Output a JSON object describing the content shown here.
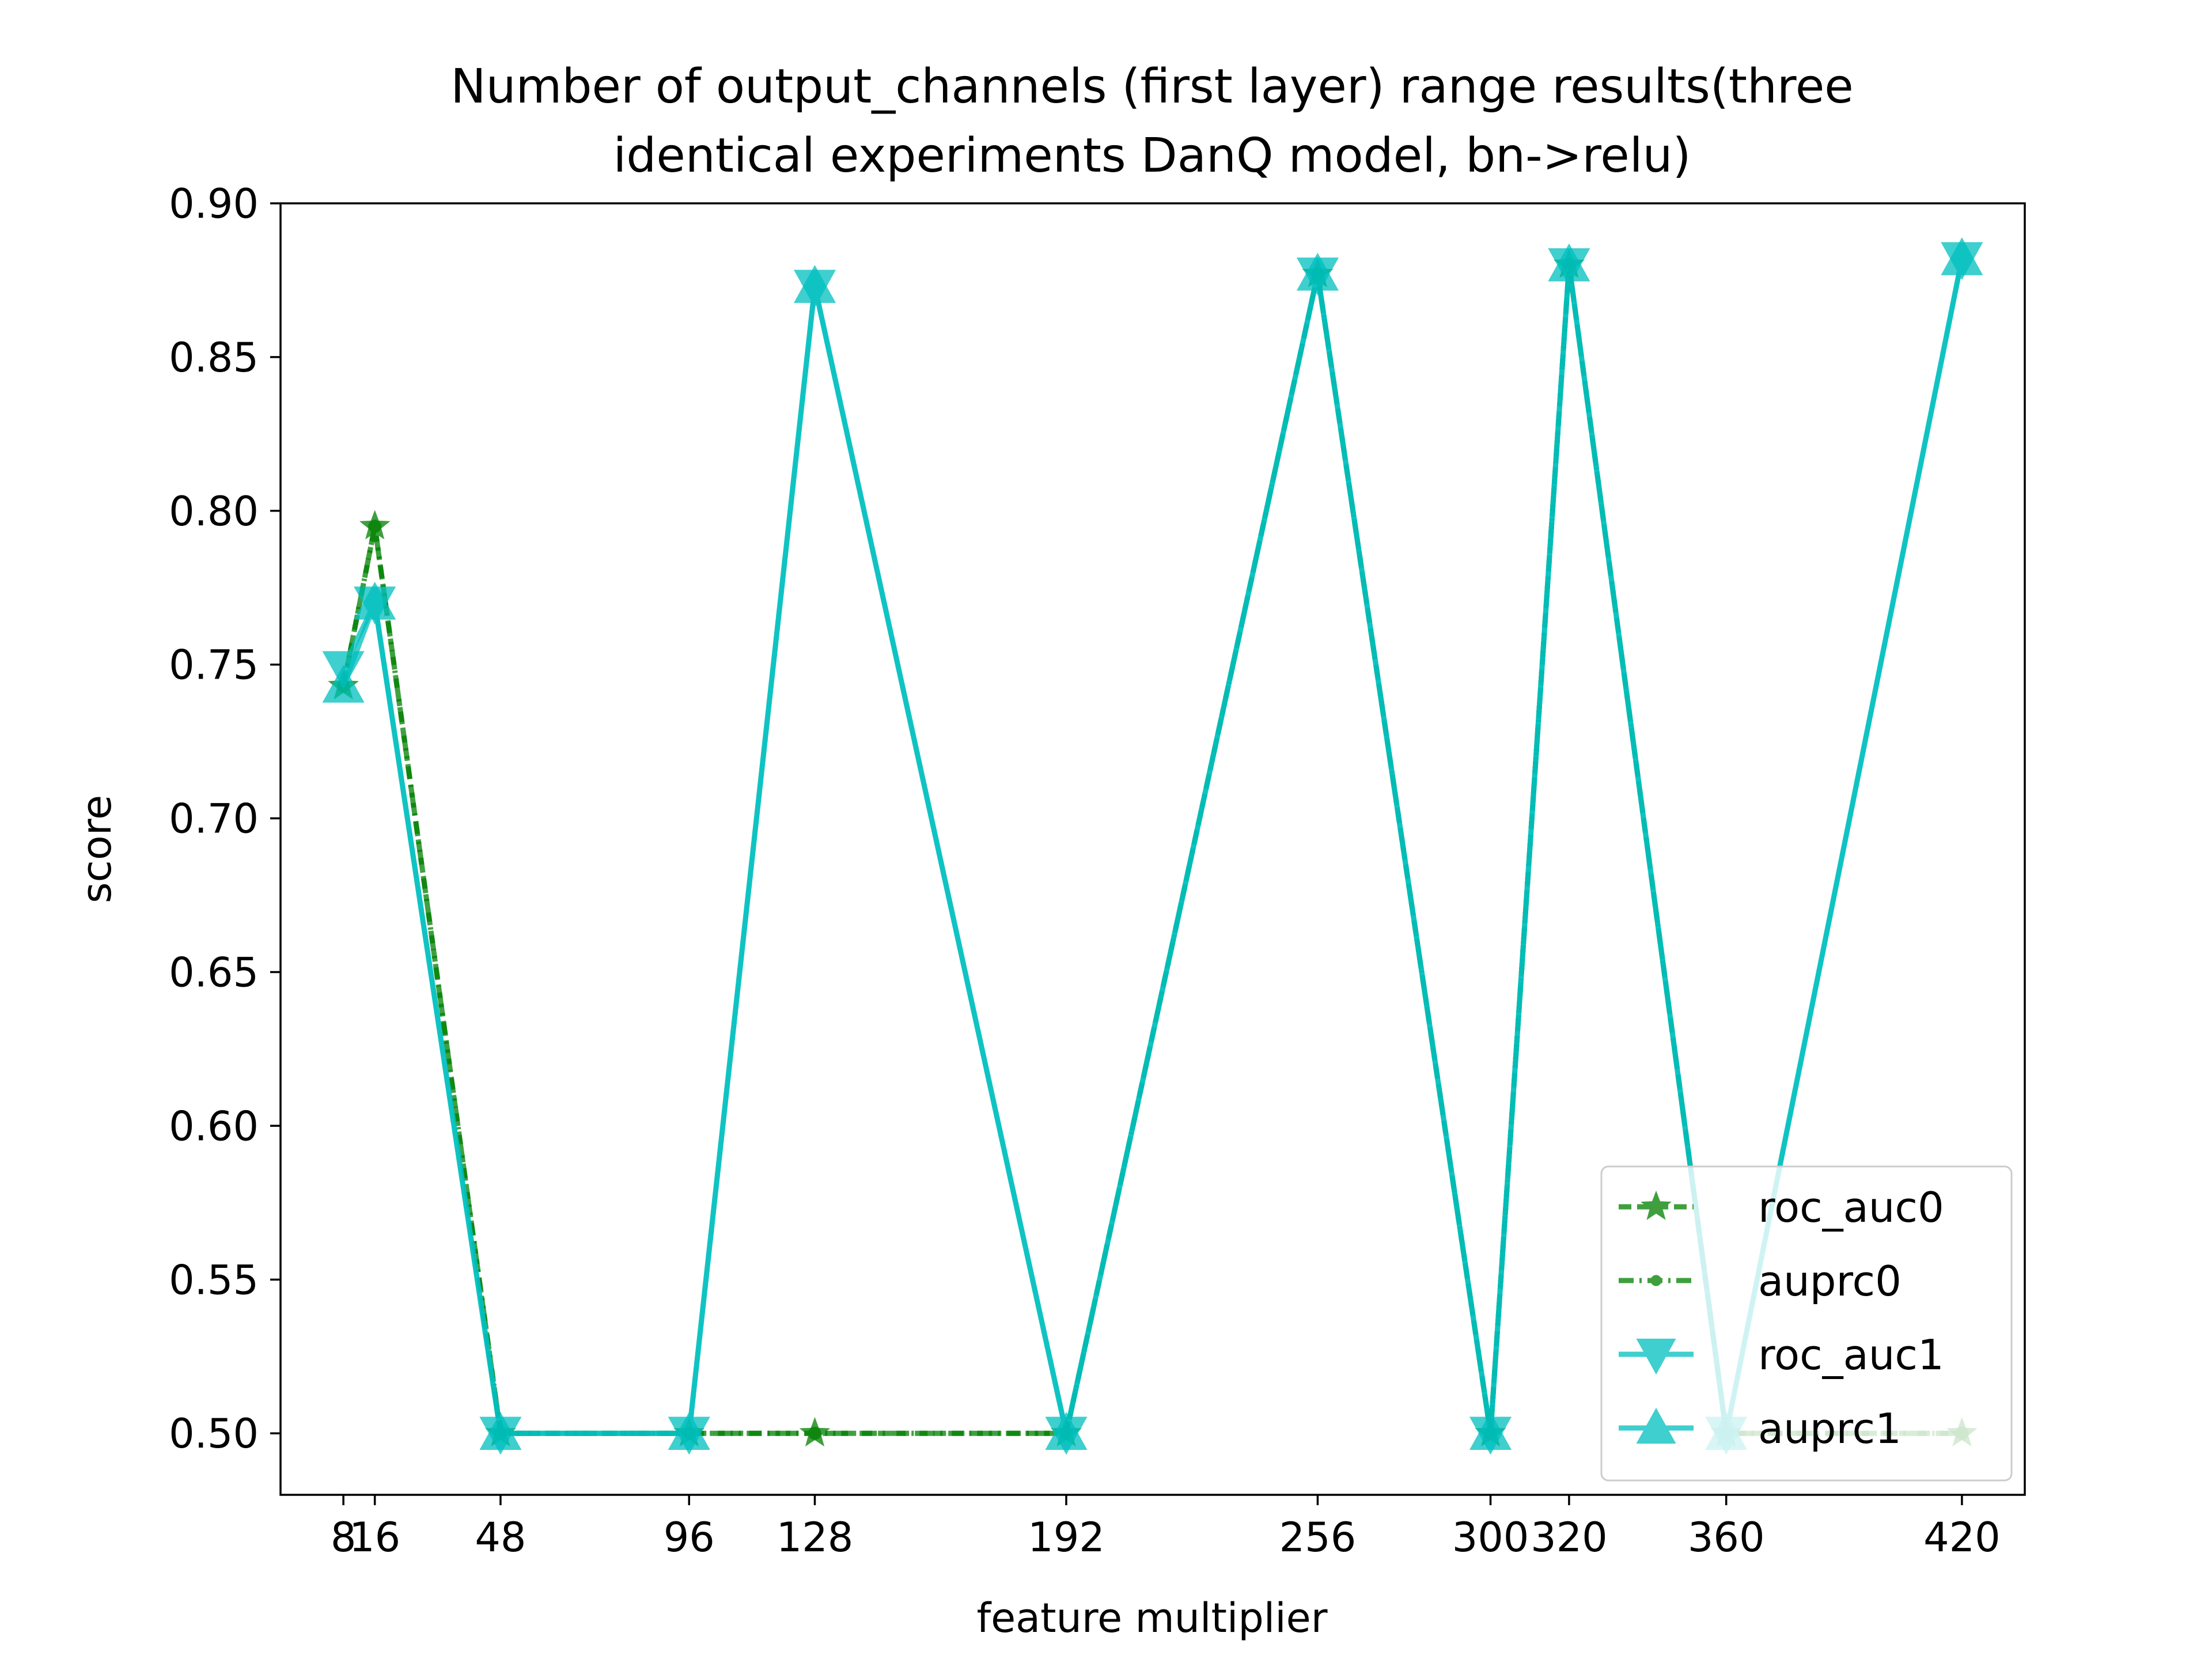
{
  "chart_data": {
    "type": "line",
    "title_lines": [
      "Number of output_channels (first layer) range results(three",
      "identical experiments DanQ model, bn->relu)"
    ],
    "xlabel": "feature multiplier",
    "ylabel": "score",
    "x": [
      8,
      16,
      48,
      96,
      128,
      192,
      256,
      300,
      320,
      360,
      420
    ],
    "x_tick_labels": [
      "8",
      "16",
      "48",
      "96",
      "128",
      "192",
      "256",
      "300",
      "320",
      "360",
      "420"
    ],
    "xlim": [
      -8,
      436
    ],
    "ylim": [
      0.48,
      0.9
    ],
    "y_ticks": [
      0.5,
      0.55,
      0.6,
      0.65,
      0.7,
      0.75,
      0.8,
      0.85,
      0.9
    ],
    "y_tick_labels": [
      "0.50",
      "0.55",
      "0.60",
      "0.65",
      "0.70",
      "0.75",
      "0.80",
      "0.85",
      "0.90"
    ],
    "grid": false,
    "legend_position": "lower right",
    "series": [
      {
        "name": "roc_auc0",
        "color": "#008000",
        "marker": "star",
        "dash": "dashed",
        "values": [
          0.743,
          0.795,
          0.5,
          0.5,
          0.5,
          0.5,
          0.877,
          0.5,
          0.88,
          0.5,
          0.5
        ]
      },
      {
        "name": "auprc0",
        "color": "#008000",
        "marker": "circle",
        "dash": "dashdot",
        "values": [
          0.743,
          0.795,
          0.5,
          0.5,
          0.5,
          0.5,
          0.877,
          0.5,
          0.88,
          0.5,
          0.5
        ]
      },
      {
        "name": "roc_auc1",
        "color": "#00bfbf",
        "marker": "triangle-down",
        "dash": "solid",
        "values": [
          0.749,
          0.77,
          0.5,
          0.5,
          0.873,
          0.5,
          0.877,
          0.5,
          0.88,
          0.5,
          0.882
        ]
      },
      {
        "name": "auprc1",
        "color": "#00bfbf",
        "marker": "triangle-up",
        "dash": "solid",
        "values": [
          0.743,
          0.77,
          0.5,
          0.5,
          0.873,
          0.5,
          0.877,
          0.5,
          0.88,
          0.5,
          0.882
        ]
      }
    ]
  }
}
